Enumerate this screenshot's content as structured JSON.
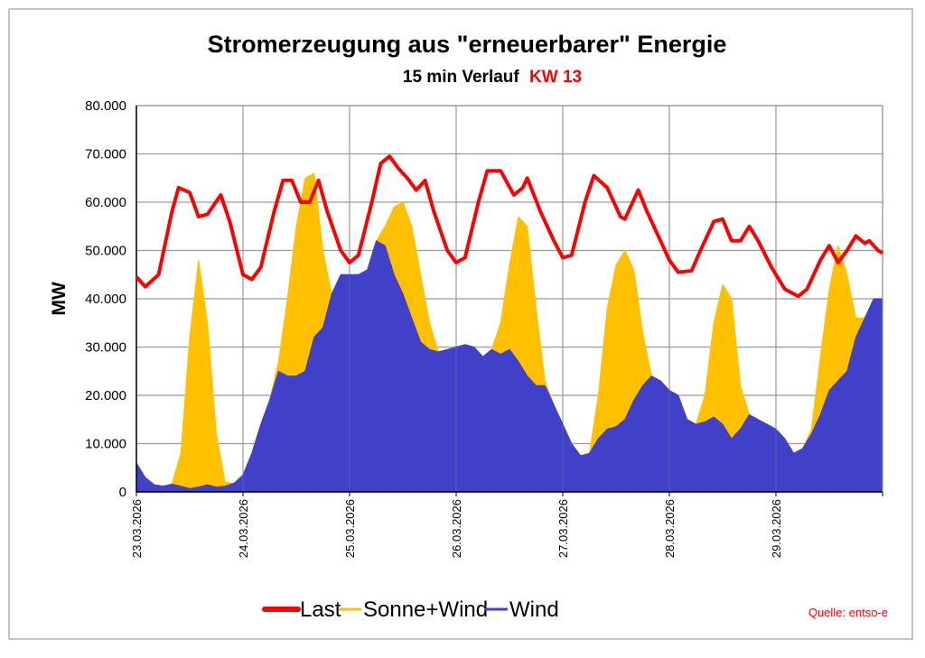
{
  "chart_data": {
    "type": "area",
    "title": "Stromerzeugung aus \"erneuerbarer\" Energie",
    "subtitle": "15 min Verlauf",
    "subtitle_highlight": "KW 13",
    "ylabel": "MW",
    "xlabel": "",
    "ylim": [
      0,
      80000
    ],
    "yticks": [
      0,
      10000,
      20000,
      30000,
      40000,
      50000,
      60000,
      70000,
      80000
    ],
    "ytick_labels": [
      "0",
      "10.000",
      "20.000",
      "30.000",
      "40.000",
      "50.000",
      "60.000",
      "70.000",
      "80.000"
    ],
    "xlim_hours": [
      0,
      168
    ],
    "xtick_labels": [
      "23.03.2026",
      "24.03.2026",
      "25.03.2026",
      "26.03.2026",
      "27.03.2026",
      "28.03.2026",
      "29.03.2026"
    ],
    "grid": true,
    "legend_position": "bottom",
    "source": "Quelle: entso-e",
    "colors": {
      "last": "#ff0000",
      "sonne_wind": "#ffc000",
      "wind": "#4040c8",
      "highlight": "#ff0000"
    },
    "series": [
      {
        "name": "Sonne+Wind",
        "key": "sonne_wind",
        "x_step_hours": 2,
        "values": [
          6000,
          3000,
          1500,
          1200,
          1600,
          8000,
          32000,
          48000,
          35000,
          12000,
          2000,
          1800,
          3500,
          8000,
          14000,
          19000,
          27000,
          40000,
          55000,
          65000,
          66000,
          50000,
          41000,
          45000,
          45000,
          45000,
          46000,
          52000,
          55000,
          59000,
          60000,
          55000,
          45000,
          35000,
          29000,
          29500,
          30000,
          30500,
          30000,
          28000,
          29500,
          35000,
          47000,
          57000,
          55000,
          38000,
          23000,
          18000,
          14000,
          10000,
          7500,
          8000,
          20000,
          38000,
          47000,
          50000,
          46000,
          33000,
          24000,
          23000,
          21000,
          20000,
          15000,
          14000,
          20000,
          35000,
          43000,
          40000,
          22000,
          16000,
          15000,
          14000,
          13000,
          11000,
          8000,
          9000,
          13000,
          28000,
          42000,
          51000,
          45000,
          36000,
          36000,
          40000,
          40000
        ]
      },
      {
        "name": "Wind",
        "key": "wind",
        "x_step_hours": 2,
        "values": [
          6000,
          3000,
          1500,
          1200,
          1600,
          1200,
          700,
          1000,
          1500,
          1000,
          1200,
          1800,
          3500,
          8000,
          14000,
          19000,
          25000,
          24000,
          24000,
          25000,
          32000,
          34000,
          41000,
          45000,
          45000,
          45000,
          46000,
          52000,
          51000,
          45000,
          41000,
          36000,
          31000,
          29500,
          29000,
          29500,
          30000,
          30500,
          30000,
          28000,
          29500,
          28500,
          29500,
          27000,
          24000,
          22000,
          22000,
          18000,
          14000,
          10000,
          7500,
          8000,
          11000,
          13000,
          13500,
          15000,
          19000,
          22000,
          24000,
          23000,
          21000,
          20000,
          15000,
          14000,
          14500,
          15500,
          14000,
          11000,
          13000,
          16000,
          15000,
          14000,
          13000,
          11000,
          8000,
          9000,
          12000,
          16000,
          21000,
          23000,
          25000,
          32000,
          36000,
          40000,
          40000
        ]
      },
      {
        "name": "Last",
        "key": "last",
        "points": [
          [
            0,
            44500
          ],
          [
            2,
            42500
          ],
          [
            5,
            45000
          ],
          [
            8,
            58000
          ],
          [
            9.5,
            63000
          ],
          [
            12,
            62000
          ],
          [
            14,
            57000
          ],
          [
            16,
            57500
          ],
          [
            19,
            61500
          ],
          [
            21,
            56000
          ],
          [
            24,
            45000
          ],
          [
            26,
            44000
          ],
          [
            28,
            46500
          ],
          [
            31,
            58000
          ],
          [
            33,
            64500
          ],
          [
            35,
            64500
          ],
          [
            37,
            60000
          ],
          [
            39,
            60000
          ],
          [
            41,
            64500
          ],
          [
            43,
            58000
          ],
          [
            46,
            50000
          ],
          [
            48,
            47500
          ],
          [
            50,
            49000
          ],
          [
            53,
            60000
          ],
          [
            55,
            68000
          ],
          [
            57,
            69500
          ],
          [
            59,
            67000
          ],
          [
            61,
            65000
          ],
          [
            63,
            62500
          ],
          [
            65,
            64500
          ],
          [
            67,
            58000
          ],
          [
            70,
            50000
          ],
          [
            72,
            47500
          ],
          [
            74,
            48500
          ],
          [
            77,
            60000
          ],
          [
            79,
            66500
          ],
          [
            82,
            66500
          ],
          [
            85,
            61500
          ],
          [
            87,
            63000
          ],
          [
            88,
            65000
          ],
          [
            91,
            58000
          ],
          [
            94,
            52000
          ],
          [
            96,
            48500
          ],
          [
            98,
            49000
          ],
          [
            101,
            60000
          ],
          [
            103,
            65500
          ],
          [
            106,
            63000
          ],
          [
            109,
            57000
          ],
          [
            110,
            56500
          ],
          [
            113,
            62500
          ],
          [
            115,
            58000
          ],
          [
            118,
            52000
          ],
          [
            120,
            48000
          ],
          [
            122,
            45500
          ],
          [
            125,
            45800
          ],
          [
            127,
            50000
          ],
          [
            130,
            56000
          ],
          [
            132,
            56500
          ],
          [
            134,
            52000
          ],
          [
            136,
            52000
          ],
          [
            138,
            55000
          ],
          [
            140,
            52000
          ],
          [
            143,
            46500
          ],
          [
            146,
            42000
          ],
          [
            149,
            40500
          ],
          [
            151,
            42000
          ],
          [
            154,
            48000
          ],
          [
            156,
            51000
          ],
          [
            158,
            47500
          ],
          [
            160,
            50000
          ],
          [
            162,
            53000
          ],
          [
            164,
            51500
          ],
          [
            165,
            52000
          ],
          [
            167,
            50000
          ],
          [
            168,
            49500
          ]
        ]
      }
    ],
    "legend": [
      "Last",
      "Sonne+Wind",
      "Wind"
    ]
  }
}
